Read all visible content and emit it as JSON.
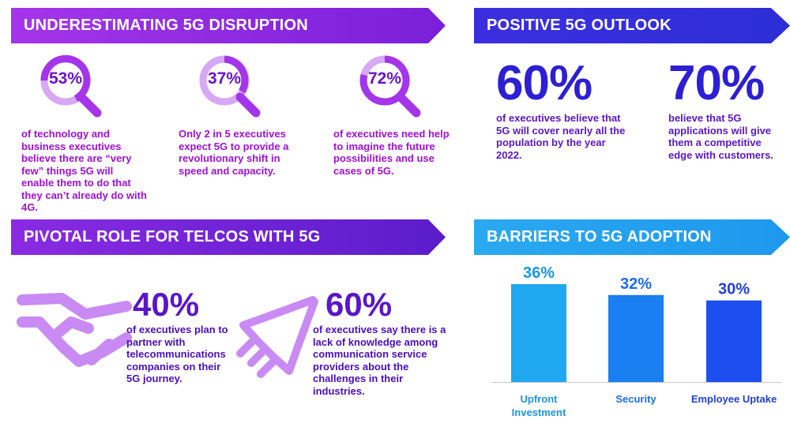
{
  "underestimating": {
    "title": "UNDERESTIMATING 5G DISRUPTION",
    "stats": [
      {
        "value": "53%",
        "text": "of technology and business executives believe there are “very few” things 5G will enable them to do that they can’t already do with 4G."
      },
      {
        "value": "37%",
        "text": "Only 2 in 5 executives expect 5G to provide a revolutionary shift in speed and capacity."
      },
      {
        "value": "72%",
        "text": "of executives need help to imagine the future possibilities and use cases of 5G."
      }
    ]
  },
  "outlook": {
    "title": "POSITIVE 5G OUTLOOK",
    "stats": [
      {
        "value": "60%",
        "text": "of executives believe that 5G will cover nearly all the population by the year 2022."
      },
      {
        "value": "70%",
        "text": "believe that 5G applications will give them a competitive edge with customers."
      }
    ]
  },
  "pivotal": {
    "title": "PIVOTAL ROLE FOR TELCOS WITH 5G",
    "stats": [
      {
        "value": "40%",
        "text": "of executives plan to partner with telecommunications companies on their 5G journey.",
        "icon": "handshake-icon"
      },
      {
        "value": "60%",
        "text": "of executives say there is a lack of knowledge among communication service providers about the challenges in their industries.",
        "icon": "rocket-icon"
      }
    ]
  },
  "colors": {
    "purple": "#a435ea",
    "violet": "#5a16c9",
    "indigo": "#2d1fd4",
    "sky": "#2aa9f0",
    "bar1": "#1fa8f0",
    "bar2": "#1a7ff0",
    "bar3": "#1d4ff0"
  },
  "chart_data": {
    "type": "bar",
    "title": "BARRIERS TO 5G ADOPTION",
    "categories": [
      "Upfront\nInvestment",
      "Security",
      "Employee Uptake"
    ],
    "values": [
      36,
      32,
      30
    ],
    "labels": [
      "36%",
      "32%",
      "30%"
    ],
    "ylim": [
      0,
      36
    ],
    "grid": false
  }
}
